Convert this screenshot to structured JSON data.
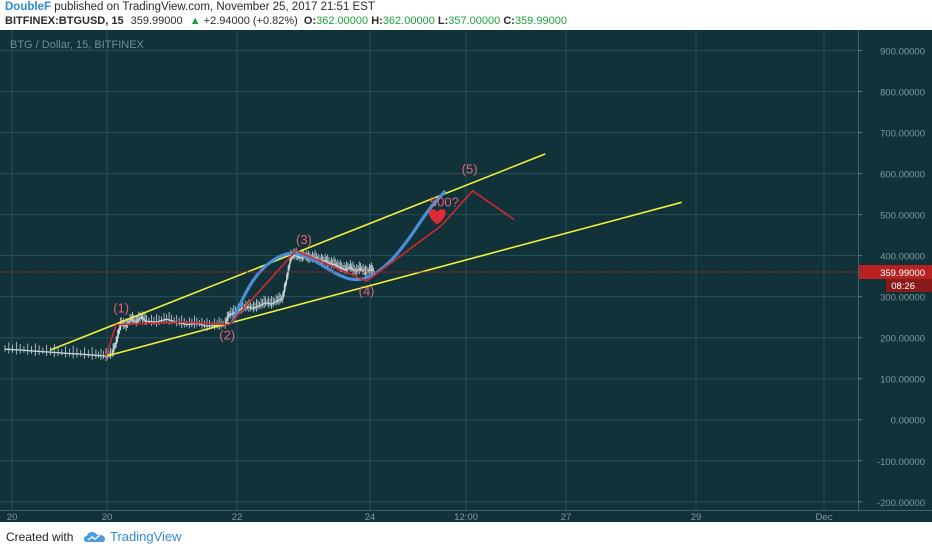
{
  "header": {
    "author": "DoubleF",
    "published_text": "published on TradingView.com, November 25, 2017 21:51 EST",
    "symbol": "BITFINEX:BTGUSD, 15",
    "last": "359.99000",
    "change": "+2.94000 (+0.82%)",
    "open_label": "O:",
    "open": "362.00000",
    "high_label": "H:",
    "high": "362.00000",
    "low_label": "L:",
    "low": "357.00000",
    "close_label": "C:",
    "close": "359.99000"
  },
  "colors": {
    "background": "#113238",
    "grid": "#24505a",
    "price": "#c8d6dc",
    "channel": "#f2f23a",
    "wave": "#d2282e",
    "projection": "#4a8fd6",
    "price_line": "#b32222",
    "label": "#e8627a"
  },
  "chart_data": {
    "type": "line",
    "title": "BTG / Dollar, 15, BITFINEX",
    "xlabel": "",
    "ylabel": "",
    "x_ticks": [
      "20",
      "20",
      "22",
      "24",
      "12:00",
      "27",
      "29",
      "Dec"
    ],
    "y_ticks": [
      "-200.00000",
      "-100.00000",
      "0.00000",
      "100.00000",
      "200.00000",
      "300.00000",
      "400.00000",
      "500.00000",
      "600.00000",
      "700.00000",
      "800.00000",
      "900.00000"
    ],
    "ylim": [
      -220,
      950
    ],
    "grid": true,
    "last_price_label": "359.99000",
    "countdown_label": "08:26",
    "series": [
      {
        "points": [
          [
            0,
            172
          ],
          [
            15,
            170
          ],
          [
            30,
            167
          ],
          [
            45,
            165
          ],
          [
            60,
            162
          ],
          [
            75,
            160
          ],
          [
            90,
            157
          ],
          [
            100,
            155
          ],
          [
            106,
            160
          ],
          [
            110,
            185
          ],
          [
            113,
            215
          ],
          [
            115,
            235
          ],
          [
            120,
            228
          ],
          [
            125,
            245
          ],
          [
            130,
            238
          ],
          [
            135,
            250
          ],
          [
            140,
            240
          ],
          [
            150,
            238
          ],
          [
            160,
            245
          ],
          [
            170,
            238
          ],
          [
            180,
            232
          ],
          [
            190,
            235
          ],
          [
            200,
            228
          ],
          [
            210,
            230
          ],
          [
            218,
            232
          ],
          [
            222,
            255
          ],
          [
            228,
            262
          ],
          [
            234,
            270
          ],
          [
            240,
            275
          ],
          [
            246,
            272
          ],
          [
            252,
            278
          ],
          [
            258,
            285
          ],
          [
            264,
            282
          ],
          [
            270,
            290
          ],
          [
            275,
            295
          ],
          [
            278,
            330
          ],
          [
            281,
            365
          ],
          [
            283,
            395
          ],
          [
            287,
            402
          ],
          [
            292,
            395
          ],
          [
            297,
            398
          ],
          [
            302,
            392
          ],
          [
            307,
            395
          ],
          [
            312,
            385
          ],
          [
            317,
            388
          ],
          [
            322,
            380
          ],
          [
            327,
            378
          ],
          [
            332,
            370
          ],
          [
            337,
            365
          ],
          [
            342,
            372
          ],
          [
            347,
            360
          ],
          [
            352,
            368
          ],
          [
            357,
            358
          ],
          [
            362,
            365
          ],
          [
            366,
            360
          ]
        ]
      }
    ],
    "wave_path": [
      [
        100,
        155
      ],
      [
        110,
        232
      ],
      [
        175,
        238
      ],
      [
        222,
        232
      ],
      [
        288,
        412
      ],
      [
        358,
        338
      ],
      [
        432,
        473
      ],
      [
        463,
        558
      ],
      [
        504,
        488
      ]
    ],
    "projection_curve": [
      [
        225,
        238
      ],
      [
        236,
        300
      ],
      [
        248,
        350
      ],
      [
        262,
        385
      ],
      [
        280,
        408
      ],
      [
        296,
        402
      ],
      [
        312,
        380
      ],
      [
        328,
        355
      ],
      [
        344,
        340
      ],
      [
        360,
        345
      ],
      [
        380,
        380
      ],
      [
        400,
        440
      ],
      [
        420,
        515
      ],
      [
        435,
        555
      ]
    ],
    "channel_lines": [
      [
        [
          45,
          170
        ],
        [
          535,
          648
        ]
      ],
      [
        [
          100,
          155
        ],
        [
          670,
          530
        ]
      ]
    ],
    "annotations": [
      {
        "text": "(1)",
        "x": 115,
        "y": 262
      },
      {
        "text": "(2)",
        "x": 220,
        "y": 195
      },
      {
        "text": "(3)",
        "x": 296,
        "y": 428
      },
      {
        "text": "(4)",
        "x": 358,
        "y": 303
      },
      {
        "text": "(5)",
        "x": 460,
        "y": 600
      },
      {
        "text": "500?",
        "x": 435,
        "y": 520
      }
    ]
  },
  "footer": {
    "created_with": "Created with",
    "brand": "TradingView"
  }
}
